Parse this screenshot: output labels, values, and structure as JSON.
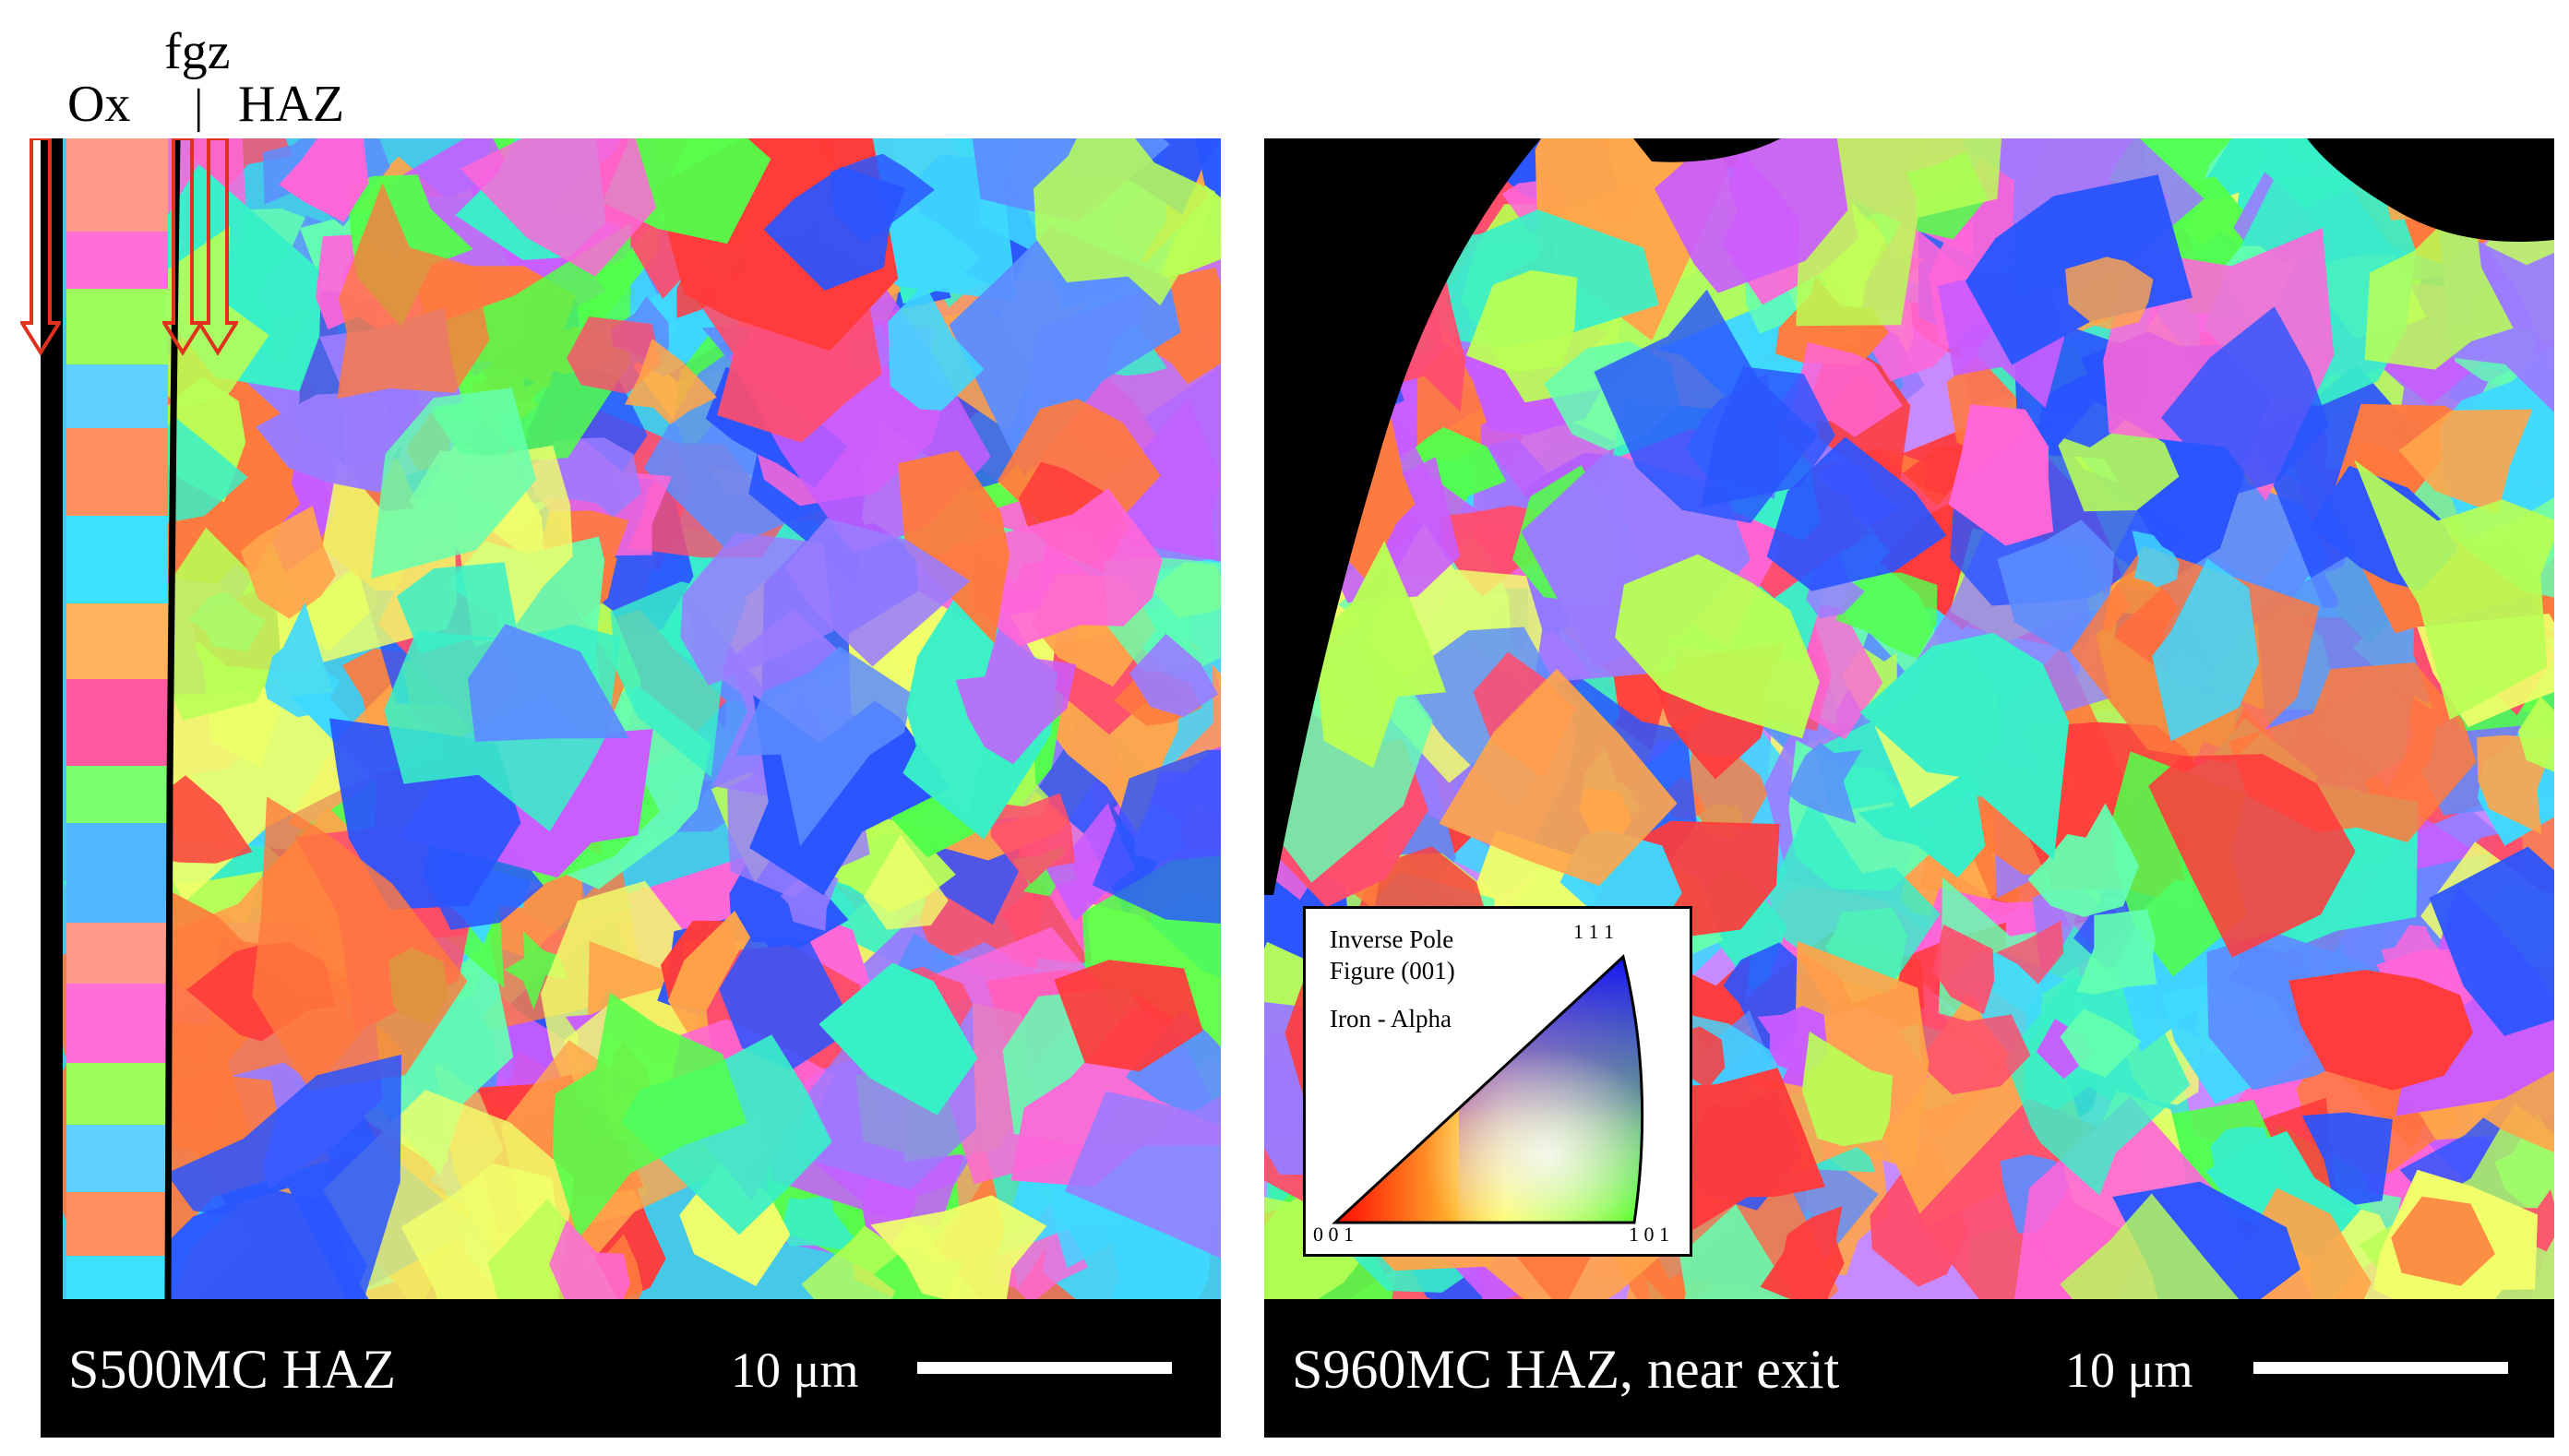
{
  "annotations": {
    "oxide_label": "Ox",
    "fgz_label": "fgz",
    "divider_mark": "|",
    "haz_label": "HAZ"
  },
  "panels": [
    {
      "caption": "S500MC HAZ",
      "scale_label": "10 μm"
    },
    {
      "caption": "S960MC HAZ, near exit",
      "scale_label": "10 μm"
    }
  ],
  "legend": {
    "title_line1": "Inverse Pole",
    "title_line2": "Figure (001)",
    "phase": "Iron - Alpha",
    "corner_top": "1 1 1",
    "corner_left": "0 0 1",
    "corner_right": "1 0 1"
  },
  "colors": {
    "arrow": "#e0301e",
    "background": "#000000",
    "palette": [
      "#ff4d6d",
      "#3fd8ff",
      "#52ff4a",
      "#c95cff",
      "#ffa54a",
      "#5c8dff",
      "#ff66d9",
      "#b9ff55",
      "#38f0c8",
      "#ff7a3d",
      "#9a7cff",
      "#f0ff6a",
      "#2a55ff",
      "#ff3b3b",
      "#64ffb0"
    ]
  }
}
